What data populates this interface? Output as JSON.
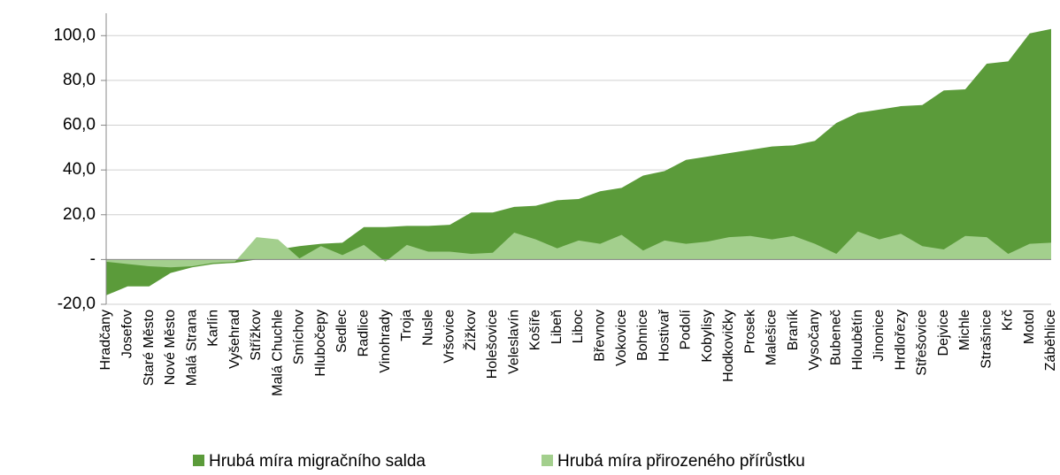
{
  "chart_data": {
    "type": "area",
    "categories": [
      "Hradčany",
      "Josefov",
      "Staré Město",
      "Nové Město",
      "Malá Strana",
      "Karlín",
      "Vyšehrad",
      "Střížkov",
      "Malá Chuchle",
      "Smíchov",
      "Hlubočepy",
      "Sedlec",
      "Radlice",
      "Vinohrady",
      "Troja",
      "Nusle",
      "Vršovice",
      "Žižkov",
      "Holešovice",
      "Veleslavín",
      "Košíře",
      "Libeň",
      "Liboc",
      "Břevnov",
      "Vokovice",
      "Bohnice",
      "Hostivař",
      "Podolí",
      "Kobylisy",
      "Hodkovičky",
      "Prosek",
      "Malešice",
      "Braník",
      "Vysočany",
      "Bubeneč",
      "Hloubětín",
      "Jinonice",
      "Hrdlořezy",
      "Střešovice",
      "Dejvice",
      "Michle",
      "Strašnice",
      "Krč",
      "Motol",
      "Záběhlice"
    ],
    "series": [
      {
        "name": "Hrubá míra migračního salda",
        "color": "#5b9b3a",
        "values": [
          -16,
          -12,
          -12,
          -6,
          -3.5,
          -2,
          -1.5,
          0,
          4.5,
          6,
          7,
          7.5,
          14.5,
          14.5,
          15,
          15,
          15.5,
          21,
          21,
          23.5,
          24,
          26.5,
          27,
          30.5,
          32,
          37.5,
          39.5,
          44.5,
          46,
          47.5,
          49,
          50.5,
          51,
          53,
          61,
          65.5,
          67,
          68.5,
          69,
          75.5,
          76,
          87.5,
          88.5,
          101,
          103
        ]
      },
      {
        "name": "Hrubá míra přirozeného přírůstku",
        "color": "#a3cf8d",
        "values": [
          -1,
          -2,
          -3,
          -3.5,
          -3,
          -1.5,
          -1,
          10,
          9,
          0.5,
          6,
          2,
          6.5,
          -1,
          6.5,
          3.5,
          3.5,
          2.5,
          3,
          12,
          9,
          5,
          8.5,
          7,
          11,
          4,
          8.5,
          7,
          8,
          10,
          10.5,
          9,
          10.5,
          7,
          2.5,
          12.5,
          9,
          11.5,
          6,
          4.5,
          10.5,
          10,
          2.5,
          7,
          7.5
        ]
      }
    ],
    "ylim": [
      -20,
      110
    ],
    "yticks": [
      {
        "value": -20,
        "label": "-20,0"
      },
      {
        "value": 0,
        "label": "-"
      },
      {
        "value": 20,
        "label": "20,0"
      },
      {
        "value": 40,
        "label": "40,0"
      },
      {
        "value": 60,
        "label": "60,0"
      },
      {
        "value": 80,
        "label": "80,0"
      },
      {
        "value": 100,
        "label": "100,0"
      }
    ],
    "grid": true
  }
}
